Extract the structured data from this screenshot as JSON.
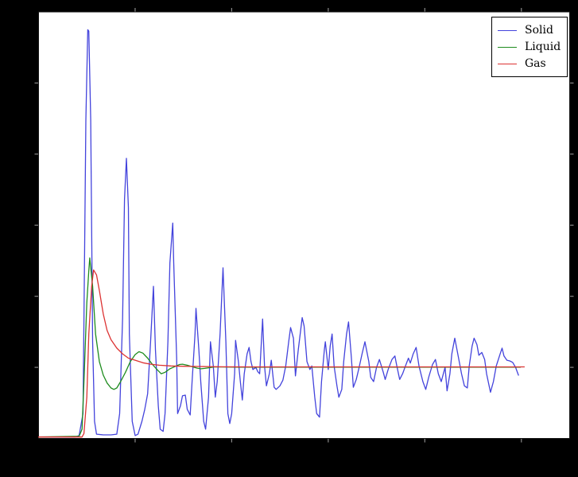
{
  "colors": {
    "figure_background": "#000000",
    "plot_background": "#ffffff",
    "frame": "#151515",
    "tick": "#8a8a8a",
    "solid_line": "#4343dc",
    "liquid_line": "#1e8c1e",
    "gas_line": "#dc3232"
  },
  "chart_data": {
    "type": "line",
    "title": "",
    "xlabel": "",
    "ylabel": "",
    "xlim": [
      0,
      5.5
    ],
    "ylim": [
      0,
      6
    ],
    "x_ticks": [
      1,
      2,
      3,
      4,
      5
    ],
    "y_ticks": [
      1,
      2,
      3,
      4,
      5
    ],
    "tick_labels_visible": false,
    "grid": false,
    "legend": {
      "position": "upper right",
      "labels": [
        "Solid",
        "Liquid",
        "Gas"
      ]
    },
    "series": [
      {
        "name": "Solid",
        "color": "#4343dc",
        "points": [
          [
            0,
            0.02
          ],
          [
            0.38,
            0.02
          ],
          [
            0.42,
            0.04
          ],
          [
            0.46,
            0.35
          ],
          [
            0.47,
            1.69
          ],
          [
            0.49,
            4.48
          ],
          [
            0.51,
            5.75
          ],
          [
            0.52,
            5.73
          ],
          [
            0.54,
            4.48
          ],
          [
            0.56,
            1.36
          ],
          [
            0.58,
            0.24
          ],
          [
            0.6,
            0.06
          ],
          [
            0.67,
            0.05
          ],
          [
            0.75,
            0.05
          ],
          [
            0.81,
            0.06
          ],
          [
            0.84,
            0.35
          ],
          [
            0.87,
            1.69
          ],
          [
            0.89,
            3.36
          ],
          [
            0.91,
            3.94
          ],
          [
            0.93,
            3.25
          ],
          [
            0.94,
            1.47
          ],
          [
            0.97,
            0.24
          ],
          [
            1.0,
            0.04
          ],
          [
            1.03,
            0.06
          ],
          [
            1.07,
            0.24
          ],
          [
            1.1,
            0.41
          ],
          [
            1.13,
            0.63
          ],
          [
            1.16,
            1.36
          ],
          [
            1.19,
            2.14
          ],
          [
            1.21,
            1.25
          ],
          [
            1.24,
            0.46
          ],
          [
            1.26,
            0.13
          ],
          [
            1.29,
            0.1
          ],
          [
            1.31,
            0.35
          ],
          [
            1.34,
            1.36
          ],
          [
            1.36,
            2.47
          ],
          [
            1.39,
            3.03
          ],
          [
            1.4,
            2.47
          ],
          [
            1.43,
            1.13
          ],
          [
            1.44,
            0.35
          ],
          [
            1.47,
            0.46
          ],
          [
            1.49,
            0.6
          ],
          [
            1.52,
            0.61
          ],
          [
            1.54,
            0.41
          ],
          [
            1.57,
            0.33
          ],
          [
            1.59,
            0.8
          ],
          [
            1.62,
            1.47
          ],
          [
            1.63,
            1.83
          ],
          [
            1.66,
            1.25
          ],
          [
            1.68,
            0.8
          ],
          [
            1.71,
            0.24
          ],
          [
            1.73,
            0.13
          ],
          [
            1.76,
            0.58
          ],
          [
            1.78,
            1.36
          ],
          [
            1.81,
            1.02
          ],
          [
            1.83,
            0.58
          ],
          [
            1.85,
            0.8
          ],
          [
            1.88,
            1.47
          ],
          [
            1.91,
            2.4
          ],
          [
            1.94,
            1.36
          ],
          [
            1.96,
            0.35
          ],
          [
            1.98,
            0.21
          ],
          [
            2.0,
            0.35
          ],
          [
            2.03,
            0.91
          ],
          [
            2.04,
            1.38
          ],
          [
            2.07,
            1.08
          ],
          [
            2.09,
            0.8
          ],
          [
            2.11,
            0.54
          ],
          [
            2.13,
            0.91
          ],
          [
            2.16,
            1.19
          ],
          [
            2.18,
            1.28
          ],
          [
            2.2,
            1.08
          ],
          [
            2.22,
            0.97
          ],
          [
            2.25,
            1.0
          ],
          [
            2.27,
            0.94
          ],
          [
            2.29,
            0.91
          ],
          [
            2.32,
            1.68
          ],
          [
            2.34,
            1.02
          ],
          [
            2.36,
            0.74
          ],
          [
            2.39,
            0.91
          ],
          [
            2.41,
            1.1
          ],
          [
            2.44,
            0.72
          ],
          [
            2.46,
            0.69
          ],
          [
            2.5,
            0.74
          ],
          [
            2.53,
            0.82
          ],
          [
            2.56,
            1.02
          ],
          [
            2.59,
            1.36
          ],
          [
            2.61,
            1.56
          ],
          [
            2.64,
            1.41
          ],
          [
            2.66,
            0.88
          ],
          [
            2.69,
            1.25
          ],
          [
            2.73,
            1.7
          ],
          [
            2.75,
            1.58
          ],
          [
            2.78,
            1.08
          ],
          [
            2.81,
            0.97
          ],
          [
            2.83,
            1.02
          ],
          [
            2.86,
            0.58
          ],
          [
            2.88,
            0.35
          ],
          [
            2.91,
            0.3
          ],
          [
            2.93,
            0.8
          ],
          [
            2.96,
            1.25
          ],
          [
            2.97,
            1.36
          ],
          [
            3.0,
            0.97
          ],
          [
            3.02,
            1.3
          ],
          [
            3.04,
            1.47
          ],
          [
            3.06,
            1.02
          ],
          [
            3.09,
            0.74
          ],
          [
            3.11,
            0.58
          ],
          [
            3.14,
            0.69
          ],
          [
            3.16,
            1.08
          ],
          [
            3.19,
            1.47
          ],
          [
            3.21,
            1.64
          ],
          [
            3.24,
            1.13
          ],
          [
            3.26,
            0.72
          ],
          [
            3.29,
            0.83
          ],
          [
            3.32,
            1.0
          ],
          [
            3.35,
            1.19
          ],
          [
            3.38,
            1.36
          ],
          [
            3.42,
            1.08
          ],
          [
            3.44,
            0.86
          ],
          [
            3.47,
            0.8
          ],
          [
            3.5,
            1.0
          ],
          [
            3.53,
            1.11
          ],
          [
            3.57,
            0.93
          ],
          [
            3.59,
            0.83
          ],
          [
            3.62,
            0.97
          ],
          [
            3.66,
            1.11
          ],
          [
            3.69,
            1.16
          ],
          [
            3.71,
            1.02
          ],
          [
            3.74,
            0.83
          ],
          [
            3.77,
            0.91
          ],
          [
            3.8,
            1.02
          ],
          [
            3.83,
            1.13
          ],
          [
            3.85,
            1.06
          ],
          [
            3.88,
            1.19
          ],
          [
            3.91,
            1.28
          ],
          [
            3.94,
            1.02
          ],
          [
            3.98,
            0.8
          ],
          [
            4.01,
            0.69
          ],
          [
            4.04,
            0.86
          ],
          [
            4.08,
            1.04
          ],
          [
            4.11,
            1.11
          ],
          [
            4.14,
            0.91
          ],
          [
            4.17,
            0.8
          ],
          [
            4.21,
            1.0
          ],
          [
            4.23,
            0.67
          ],
          [
            4.26,
            0.91
          ],
          [
            4.28,
            1.19
          ],
          [
            4.31,
            1.41
          ],
          [
            4.35,
            1.13
          ],
          [
            4.38,
            0.91
          ],
          [
            4.41,
            0.74
          ],
          [
            4.44,
            0.71
          ],
          [
            4.46,
            1.02
          ],
          [
            4.49,
            1.3
          ],
          [
            4.51,
            1.41
          ],
          [
            4.54,
            1.32
          ],
          [
            4.56,
            1.17
          ],
          [
            4.59,
            1.21
          ],
          [
            4.62,
            1.11
          ],
          [
            4.64,
            0.91
          ],
          [
            4.68,
            0.65
          ],
          [
            4.71,
            0.8
          ],
          [
            4.74,
            1.02
          ],
          [
            4.78,
            1.19
          ],
          [
            4.8,
            1.27
          ],
          [
            4.82,
            1.16
          ],
          [
            4.85,
            1.1
          ],
          [
            4.88,
            1.09
          ],
          [
            4.91,
            1.07
          ],
          [
            4.94,
            1.0
          ],
          [
            4.97,
            0.89
          ]
        ]
      },
      {
        "name": "Liquid",
        "color": "#1e8c1e",
        "points": [
          [
            0,
            0.02
          ],
          [
            0.42,
            0.03
          ],
          [
            0.45,
            0.13
          ],
          [
            0.47,
            0.8
          ],
          [
            0.5,
            1.91
          ],
          [
            0.52,
            2.36
          ],
          [
            0.53,
            2.54
          ],
          [
            0.56,
            2.14
          ],
          [
            0.59,
            1.47
          ],
          [
            0.63,
            1.08
          ],
          [
            0.67,
            0.89
          ],
          [
            0.71,
            0.78
          ],
          [
            0.75,
            0.71
          ],
          [
            0.78,
            0.69
          ],
          [
            0.81,
            0.71
          ],
          [
            0.85,
            0.8
          ],
          [
            0.9,
            0.93
          ],
          [
            0.95,
            1.08
          ],
          [
            1.0,
            1.18
          ],
          [
            1.04,
            1.22
          ],
          [
            1.08,
            1.2
          ],
          [
            1.13,
            1.13
          ],
          [
            1.18,
            1.04
          ],
          [
            1.22,
            0.98
          ],
          [
            1.27,
            0.91
          ],
          [
            1.31,
            0.93
          ],
          [
            1.36,
            0.98
          ],
          [
            1.41,
            1.01
          ],
          [
            1.46,
            1.04
          ],
          [
            1.49,
            1.045
          ],
          [
            1.54,
            1.03
          ],
          [
            1.59,
            1.01
          ],
          [
            1.64,
            0.99
          ],
          [
            1.68,
            0.98
          ],
          [
            1.72,
            0.985
          ],
          [
            1.77,
            0.995
          ],
          [
            1.82,
            1.005
          ],
          [
            1.9,
            1.005
          ],
          [
            2.07,
            1.002
          ],
          [
            2.4,
            1.002
          ],
          [
            2.89,
            1.002
          ],
          [
            3.71,
            1.002
          ],
          [
            4.54,
            1.002
          ],
          [
            4.99,
            1.002
          ]
        ]
      },
      {
        "name": "Gas",
        "color": "#dc3232",
        "points": [
          [
            0,
            0.02
          ],
          [
            0.45,
            0.02
          ],
          [
            0.47,
            0.07
          ],
          [
            0.5,
            0.58
          ],
          [
            0.52,
            1.47
          ],
          [
            0.55,
            2.14
          ],
          [
            0.57,
            2.37
          ],
          [
            0.6,
            2.3
          ],
          [
            0.63,
            2.08
          ],
          [
            0.67,
            1.75
          ],
          [
            0.71,
            1.52
          ],
          [
            0.75,
            1.39
          ],
          [
            0.81,
            1.27
          ],
          [
            0.87,
            1.19
          ],
          [
            0.93,
            1.13
          ],
          [
            1.0,
            1.1
          ],
          [
            1.08,
            1.065
          ],
          [
            1.16,
            1.045
          ],
          [
            1.25,
            1.03
          ],
          [
            1.37,
            1.02
          ],
          [
            1.49,
            1.015
          ],
          [
            1.66,
            1.012
          ],
          [
            1.9,
            1.008
          ],
          [
            2.23,
            1.006
          ],
          [
            2.73,
            1.006
          ],
          [
            3.3,
            1.006
          ],
          [
            3.88,
            1.006
          ],
          [
            4.54,
            1.006
          ],
          [
            5.03,
            1.006
          ]
        ]
      }
    ]
  }
}
